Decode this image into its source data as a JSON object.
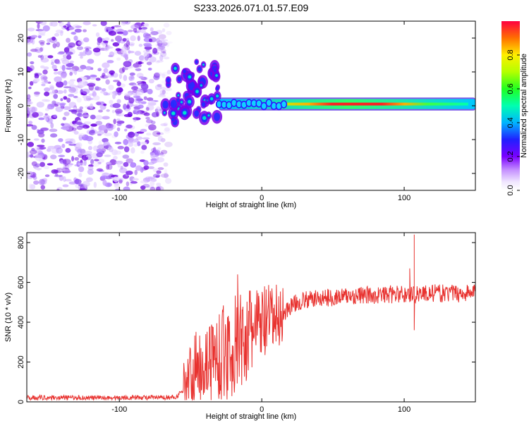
{
  "title": "S233.2026.071.01.57.E09",
  "colors": {
    "snr_line": "#e8322f",
    "background": "#ffffff",
    "noise_purple": "#8a2be2",
    "text": "#000000"
  },
  "chart_data": [
    {
      "type": "heatmap",
      "title": "S233.2026.071.01.57.E09",
      "xlabel": "Height of straight line (km)",
      "ylabel": "Frequency (Hz)",
      "xlim": [
        -165,
        150
      ],
      "ylim": [
        -25,
        25
      ],
      "xticks": [
        -100,
        0,
        100
      ],
      "yticks": [
        -20,
        -10,
        0,
        10,
        20
      ],
      "colorbar": {
        "label": "Normalized spectral amplitude",
        "range": [
          0,
          1
        ],
        "ticks": [
          0.0,
          0.2,
          0.4,
          0.6,
          0.8
        ],
        "colormap": "rainbow (purple to red)"
      },
      "regions": [
        {
          "description": "diffuse noise",
          "x_range": [
            -165,
            -65
          ],
          "y_range": [
            -25,
            25
          ],
          "amplitude": 0.05
        },
        {
          "description": "scattered blobs",
          "x_range": [
            -70,
            -30
          ],
          "y_range": [
            -5,
            13
          ],
          "amplitude": 0.2
        },
        {
          "description": "signal band",
          "x_range": [
            -30,
            150
          ],
          "y_range": [
            -1,
            2
          ],
          "center_frequency": 0.5,
          "amplitude": 0.9
        }
      ]
    },
    {
      "type": "line",
      "xlabel": "Height of straight line (km)",
      "ylabel": "SNR (10 * v/v)",
      "xlim": [
        -165,
        150
      ],
      "ylim": [
        0,
        850
      ],
      "xticks": [
        -100,
        0,
        100
      ],
      "yticks": [
        0,
        200,
        400,
        600,
        800
      ],
      "series": [
        {
          "name": "SNR",
          "x": [
            -165,
            -150,
            -130,
            -110,
            -90,
            -70,
            -60,
            -55,
            -50,
            -45,
            -40,
            -35,
            -30,
            -25,
            -20,
            -15,
            -10,
            -5,
            0,
            5,
            10,
            15,
            20,
            25,
            30,
            40,
            50,
            60,
            70,
            80,
            90,
            100,
            105,
            110,
            120,
            130,
            140,
            150
          ],
          "values": [
            20,
            22,
            21,
            20,
            22,
            21,
            25,
            60,
            130,
            180,
            200,
            220,
            240,
            250,
            270,
            300,
            330,
            370,
            390,
            400,
            420,
            440,
            480,
            500,
            510,
            520,
            525,
            530,
            535,
            535,
            540,
            540,
            540,
            545,
            545,
            545,
            545,
            550
          ],
          "spikes": [
            {
              "x": -17,
              "y": 640
            },
            {
              "x": 104,
              "y": 670
            },
            {
              "x": 107,
              "y": 840
            },
            {
              "x": 107,
              "y": 360
            }
          ]
        }
      ]
    }
  ]
}
